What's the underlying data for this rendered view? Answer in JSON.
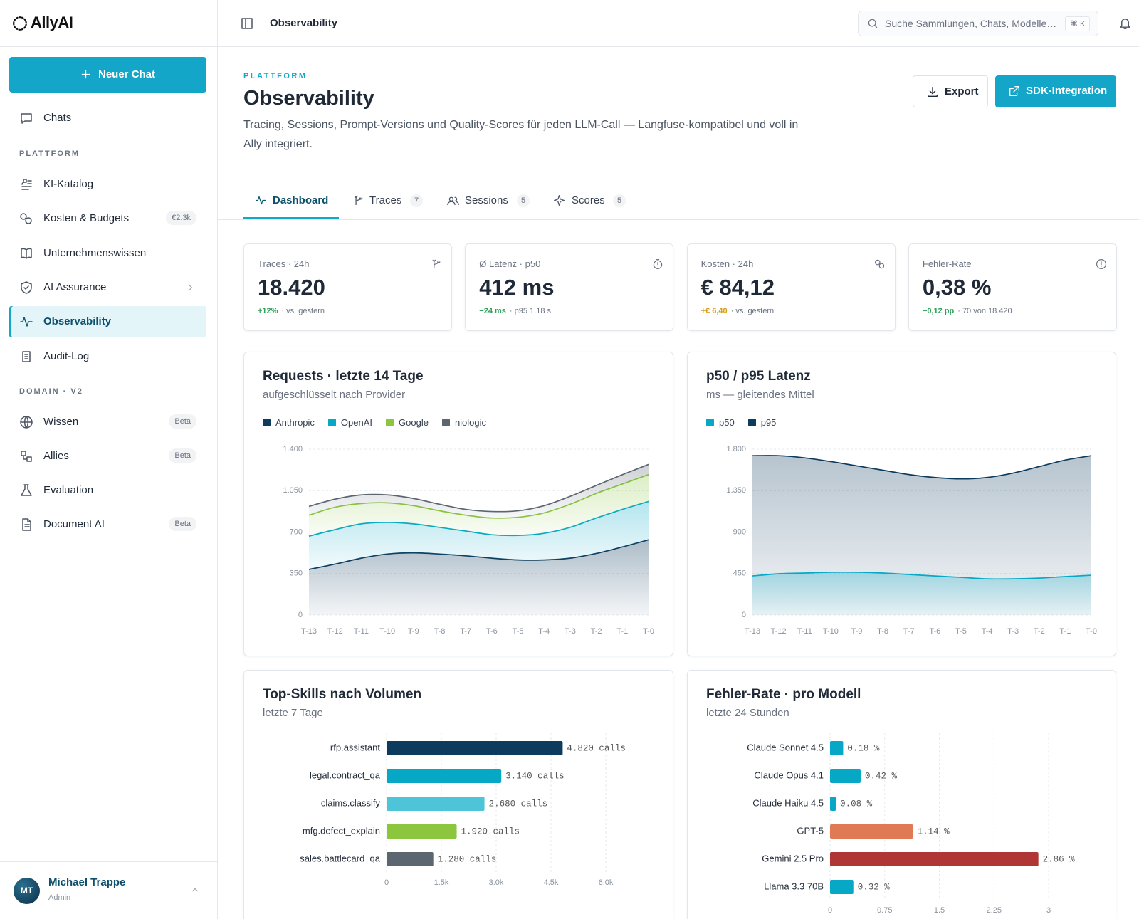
{
  "sidebar": {
    "logo": "AllyAI",
    "new_chat": "Neuer Chat",
    "chats": "Chats",
    "sections": [
      {
        "title": "PLATTFORM",
        "items": [
          {
            "label": "KI-Katalog"
          },
          {
            "label": "Kosten & Budgets",
            "badge": "€2.3k"
          },
          {
            "label": "Unternehmenswissen"
          },
          {
            "label": "AI Assurance",
            "submenu": true
          },
          {
            "label": "Observability",
            "active": true
          },
          {
            "label": "Audit-Log"
          }
        ]
      },
      {
        "title": "DOMAIN · V2",
        "items": [
          {
            "label": "Wissen",
            "badge": "Beta"
          },
          {
            "label": "Allies",
            "badge": "Beta"
          },
          {
            "label": "Evaluation"
          },
          {
            "label": "Document AI",
            "badge": "Beta"
          }
        ]
      }
    ],
    "user": {
      "initials": "MT",
      "name": "Michael Trappe",
      "role": "Admin"
    }
  },
  "topbar": {
    "title": "Observability",
    "search": "Suche Sammlungen, Chats, Modelle…",
    "shortcut": "⌘ K"
  },
  "header": {
    "eyebrow": "PLATTFORM",
    "title": "Observability",
    "description": "Tracing, Sessions, Prompt-Versions und Quality-Scores für jeden LLM-Call — Langfuse-kompatibel und voll in Ally integriert.",
    "actions": [
      "Export",
      "SDK-Integration"
    ]
  },
  "tabs": [
    {
      "label": "Dashboard",
      "active": true
    },
    {
      "label": "Traces",
      "count": 7
    },
    {
      "label": "Sessions",
      "count": 5
    },
    {
      "label": "Scores",
      "count": 5
    }
  ],
  "kpis": [
    {
      "label": "Traces · 24h",
      "value": "18.420",
      "delta": "+12%",
      "note": "· vs. gestern",
      "tone": "good"
    },
    {
      "label": "Ø Latenz · p50",
      "value": "412 ms",
      "delta": "−24 ms",
      "note": "· p95 1.18 s",
      "tone": "good"
    },
    {
      "label": "Kosten · 24h",
      "value": "€ 84,12",
      "delta": "+€ 6,40",
      "note": "· vs. gestern",
      "tone": "warn"
    },
    {
      "label": "Fehler-Rate",
      "value": "0,38 %",
      "delta": "−0,12 pp",
      "note": "· 70 von 18.420",
      "tone": "good"
    }
  ],
  "chart_data": [
    {
      "type": "area",
      "stacked": true,
      "title": "Requests · letzte 14 Tage",
      "subtitle": "aufgeschlüsselt nach Provider",
      "categories": [
        "T-13",
        "T-12",
        "T-11",
        "T-10",
        "T-9",
        "T-8",
        "T-7",
        "T-6",
        "T-5",
        "T-4",
        "T-3",
        "T-2",
        "T-1",
        "T-0"
      ],
      "series": [
        {
          "name": "Anthropic",
          "color": "#0d3b5e",
          "values": [
            385,
            430,
            480,
            515,
            525,
            515,
            500,
            480,
            465,
            465,
            480,
            520,
            575,
            635
          ]
        },
        {
          "name": "OpenAI",
          "color": "#06a8c6",
          "values": [
            281,
            291,
            290,
            267,
            245,
            225,
            209,
            198,
            207,
            225,
            260,
            299,
            317,
            324
          ]
        },
        {
          "name": "Google",
          "color": "#8cc63f",
          "values": [
            177,
            189,
            171,
            165,
            153,
            140,
            134,
            141,
            153,
            172,
            195,
            207,
            214,
            226
          ]
        },
        {
          "name": "niologic",
          "color": "#5b6670",
          "values": [
            74,
            68,
            73,
            67,
            61,
            55,
            49,
            55,
            55,
            61,
            67,
            68,
            79,
            86
          ]
        }
      ],
      "ylim": [
        0,
        1400
      ],
      "yticks": [
        0,
        350,
        700,
        {
          "value": 1050,
          "label": "1.050"
        },
        {
          "value": 1400,
          "label": "1.400"
        }
      ],
      "grid": true,
      "legend": "top-left"
    },
    {
      "type": "area",
      "stacked": false,
      "title": "p50 / p95 Latenz",
      "subtitle": "ms — gleitendes Mittel",
      "categories": [
        "T-13",
        "T-12",
        "T-11",
        "T-10",
        "T-9",
        "T-8",
        "T-7",
        "T-6",
        "T-5",
        "T-4",
        "T-3",
        "T-2",
        "T-1",
        "T-0"
      ],
      "series": [
        {
          "name": "p50",
          "color": "#06a8c6",
          "values": [
            424,
            448,
            456,
            464,
            464,
            456,
            440,
            424,
            409,
            393,
            393,
            401,
            417,
            432
          ]
        },
        {
          "name": "p95",
          "color": "#0d3b5e",
          "values": [
            1729,
            1729,
            1706,
            1666,
            1619,
            1572,
            1525,
            1493,
            1478,
            1493,
            1541,
            1611,
            1682,
            1729
          ]
        }
      ],
      "ylim": [
        0,
        1800
      ],
      "yticks": [
        0,
        450,
        900,
        {
          "value": 1350,
          "label": "1.350"
        },
        {
          "value": 1800,
          "label": "1.800"
        }
      ],
      "grid": true,
      "legend": "top-left"
    },
    {
      "type": "bar",
      "orientation": "horizontal",
      "title": "Top-Skills nach Volumen",
      "subtitle": "letzte 7 Tage",
      "categories": [
        "rfp.assistant",
        "legal.contract_qa",
        "claims.classify",
        "mfg.defect_explain",
        "sales.battlecard_qa"
      ],
      "values": [
        4820,
        3140,
        2680,
        1920,
        1280
      ],
      "value_labels": [
        "4.820 calls",
        "3.140 calls",
        "2.680 calls",
        "1.920 calls",
        "1.280 calls"
      ],
      "colors": [
        "#0d3b5e",
        "#06a8c6",
        "#4ec4d9",
        "#8cc63f",
        "#5b6670"
      ],
      "xlim": [
        0,
        6000
      ],
      "xticks": [
        0,
        {
          "value": 1500,
          "label": "1.5k"
        },
        {
          "value": 3000,
          "label": "3.0k"
        },
        {
          "value": 4500,
          "label": "4.5k"
        },
        {
          "value": 6000,
          "label": "6.0k"
        }
      ],
      "grid": true
    },
    {
      "type": "bar",
      "orientation": "horizontal",
      "title": "Fehler-Rate · pro Modell",
      "subtitle": "letzte 24 Stunden",
      "categories": [
        "Claude Sonnet 4.5",
        "Claude Opus 4.1",
        "Claude Haiku 4.5",
        "GPT-5",
        "Gemini 2.5 Pro",
        "Llama 3.3 70B"
      ],
      "values": [
        0.18,
        0.42,
        0.08,
        1.14,
        2.86,
        0.32
      ],
      "value_labels": [
        "0.18 %",
        "0.42 %",
        "0.08 %",
        "1.14 %",
        "2.86 %",
        "0.32 %"
      ],
      "colors": [
        "#06a8c6",
        "#06a8c6",
        "#06a8c6",
        "#e07a55",
        "#b03535",
        "#06a8c6"
      ],
      "xlim": [
        0,
        3
      ],
      "xticks": [
        0,
        0.75,
        1.5,
        2.25,
        3
      ],
      "grid": true
    }
  ]
}
